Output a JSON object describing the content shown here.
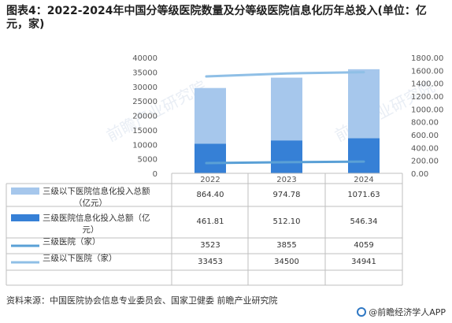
{
  "title": "图表4：2022-2024年中国分等级医院数量及分等级医院信息化历年总投入(单位：亿元，家)",
  "source": "资料来源：中国医院协会信息专业委员会、国家卫健委 前瞻产业研究院",
  "brand": "@前瞻经济学人APP",
  "watermark": "前瞻产业研究院",
  "colors": {
    "bar_light": "#a6c7ec",
    "bar_dark": "#3680d6",
    "line_dark": "#5aa0d6",
    "line_light": "#8fbfe6",
    "axis_text": "#555555",
    "grid": "#bfbfbf"
  },
  "chart_data": {
    "type": "bar",
    "categories": [
      "2022",
      "2023",
      "2024"
    ],
    "left_axis": {
      "ylim": [
        0,
        40000
      ],
      "ticks": [
        "0",
        "5000",
        "10000",
        "15000",
        "20000",
        "25000",
        "30000",
        "35000",
        "40000"
      ]
    },
    "right_axis": {
      "ylim": [
        0,
        1800
      ],
      "ticks": [
        "0.00",
        "200.00",
        "400.00",
        "600.00",
        "800.00",
        "1000.00",
        "1200.00",
        "1400.00",
        "1600.00",
        "1800.00"
      ]
    },
    "series": [
      {
        "name": "三级以下医院信息化投入总额（亿元）",
        "kind": "bar",
        "axis": "right",
        "color": "#a6c7ec",
        "values": [
          864.4,
          974.78,
          1071.63
        ],
        "labels": [
          "864.40",
          "974.78",
          "1071.63"
        ]
      },
      {
        "name": "三级医院信息化投入总额（亿元）",
        "kind": "bar",
        "axis": "right",
        "color": "#3680d6",
        "values": [
          461.81,
          512.1,
          546.34
        ],
        "labels": [
          "461.81",
          "512.10",
          "546.34"
        ]
      },
      {
        "name": "三级医院（家）",
        "kind": "line",
        "axis": "left",
        "color": "#5aa0d6",
        "values": [
          3523,
          3855,
          4059
        ],
        "labels": [
          "3523",
          "3855",
          "4059"
        ]
      },
      {
        "name": "三级以下医院（家）",
        "kind": "line",
        "axis": "left",
        "color": "#8fbfe6",
        "values": [
          33453,
          34500,
          34941
        ],
        "labels": [
          "33453",
          "34500",
          "34941"
        ]
      }
    ]
  }
}
